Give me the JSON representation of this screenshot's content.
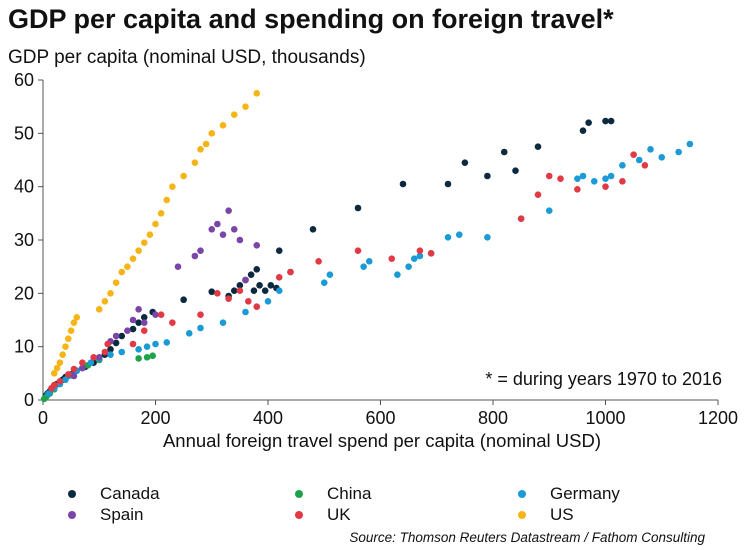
{
  "chart_data": {
    "type": "scatter",
    "title": "GDP per capita and spending on foreign travel*",
    "ylabel": "GDP per capita (nominal USD, thousands)",
    "xlabel": "Annual foreign travel spend per capita (nominal USD)",
    "annotation": "* = during years 1970 to 2016",
    "source": "Source: Thomson Reuters Datastream / Fathom Consulting",
    "xlim": [
      0,
      1200
    ],
    "ylim": [
      0,
      60
    ],
    "xticks": [
      0,
      200,
      400,
      600,
      800,
      1000,
      1200
    ],
    "yticks": [
      0,
      10,
      20,
      30,
      40,
      50,
      60
    ],
    "grid": false,
    "legend_position": "bottom",
    "series": [
      {
        "name": "Canada",
        "color": "#0b2a3f",
        "points": [
          [
            5,
            0.8
          ],
          [
            8,
            1.2
          ],
          [
            12,
            1.6
          ],
          [
            15,
            2
          ],
          [
            20,
            2.4
          ],
          [
            25,
            3
          ],
          [
            30,
            3.3
          ],
          [
            35,
            3.8
          ],
          [
            40,
            4.3
          ],
          [
            50,
            4.8
          ],
          [
            60,
            5.5
          ],
          [
            75,
            6.2
          ],
          [
            90,
            7
          ],
          [
            100,
            7.7
          ],
          [
            110,
            8.5
          ],
          [
            120,
            9.5
          ],
          [
            130,
            10.7
          ],
          [
            140,
            12
          ],
          [
            160,
            13.3
          ],
          [
            170,
            14.5
          ],
          [
            180,
            15.5
          ],
          [
            195,
            16.5
          ],
          [
            250,
            18.8
          ],
          [
            300,
            20.3
          ],
          [
            330,
            19.5
          ],
          [
            340,
            20.5
          ],
          [
            350,
            21.5
          ],
          [
            360,
            22.5
          ],
          [
            370,
            23.5
          ],
          [
            380,
            24.5
          ],
          [
            375,
            20.5
          ],
          [
            385,
            21.5
          ],
          [
            395,
            20.5
          ],
          [
            405,
            21.5
          ],
          [
            415,
            21
          ],
          [
            420,
            28
          ],
          [
            480,
            32
          ],
          [
            560,
            36
          ],
          [
            640,
            40.5
          ],
          [
            720,
            40.5
          ],
          [
            750,
            44.5
          ],
          [
            790,
            42
          ],
          [
            820,
            46.5
          ],
          [
            840,
            43
          ],
          [
            880,
            47.5
          ],
          [
            960,
            50.5
          ],
          [
            970,
            52
          ],
          [
            1000,
            52.3
          ],
          [
            1010,
            52.3
          ]
        ]
      },
      {
        "name": "China",
        "color": "#1fa34a",
        "points": [
          [
            2,
            0.2
          ],
          [
            5,
            0.5
          ],
          [
            8,
            0.9
          ],
          [
            12,
            1.2
          ],
          [
            20,
            2
          ],
          [
            30,
            3
          ],
          [
            45,
            4.5
          ],
          [
            60,
            5.5
          ],
          [
            80,
            6.5
          ],
          [
            100,
            7.5
          ],
          [
            170,
            7.8
          ],
          [
            185,
            8
          ],
          [
            195,
            8.3
          ]
        ]
      },
      {
        "name": "Germany",
        "color": "#1a9bd7",
        "points": [
          [
            10,
            1.2
          ],
          [
            20,
            2.2
          ],
          [
            30,
            3
          ],
          [
            40,
            3.8
          ],
          [
            50,
            4.6
          ],
          [
            60,
            5.5
          ],
          [
            70,
            6
          ],
          [
            85,
            7
          ],
          [
            100,
            7.8
          ],
          [
            120,
            8.5
          ],
          [
            140,
            9
          ],
          [
            170,
            9.5
          ],
          [
            185,
            10
          ],
          [
            200,
            10.5
          ],
          [
            220,
            10.8
          ],
          [
            260,
            12.5
          ],
          [
            280,
            13.5
          ],
          [
            320,
            14.5
          ],
          [
            360,
            16.5
          ],
          [
            380,
            17.5
          ],
          [
            400,
            18.5
          ],
          [
            420,
            20.5
          ],
          [
            440,
            24
          ],
          [
            500,
            22
          ],
          [
            510,
            23.5
          ],
          [
            570,
            25
          ],
          [
            580,
            26
          ],
          [
            630,
            23.5
          ],
          [
            650,
            25
          ],
          [
            660,
            26.5
          ],
          [
            670,
            27
          ],
          [
            690,
            27.5
          ],
          [
            720,
            30.5
          ],
          [
            740,
            31
          ],
          [
            790,
            30.5
          ],
          [
            850,
            34
          ],
          [
            900,
            35.5
          ],
          [
            950,
            41.5
          ],
          [
            960,
            42
          ],
          [
            980,
            41
          ],
          [
            1000,
            41.5
          ],
          [
            1010,
            42
          ],
          [
            1030,
            44
          ],
          [
            1060,
            45
          ],
          [
            1080,
            47
          ],
          [
            1100,
            45.5
          ],
          [
            1130,
            46.5
          ],
          [
            1150,
            48
          ]
        ]
      },
      {
        "name": "Spain",
        "color": "#7a45a8",
        "points": [
          [
            55,
            4.5
          ],
          [
            70,
            6
          ],
          [
            100,
            8
          ],
          [
            120,
            11
          ],
          [
            130,
            12
          ],
          [
            150,
            13
          ],
          [
            160,
            15
          ],
          [
            170,
            17
          ],
          [
            180,
            14.5
          ],
          [
            200,
            16
          ],
          [
            240,
            25
          ],
          [
            270,
            27
          ],
          [
            280,
            28
          ],
          [
            300,
            32
          ],
          [
            310,
            33
          ],
          [
            320,
            31
          ],
          [
            330,
            35.5
          ],
          [
            340,
            32
          ],
          [
            350,
            30
          ],
          [
            360,
            22.5
          ],
          [
            380,
            29
          ]
        ]
      },
      {
        "name": "UK",
        "color": "#e23a44",
        "points": [
          [
            15,
            2.2
          ],
          [
            20,
            2.8
          ],
          [
            30,
            3.5
          ],
          [
            45,
            4.8
          ],
          [
            55,
            5.8
          ],
          [
            70,
            7
          ],
          [
            90,
            8
          ],
          [
            110,
            9
          ],
          [
            115,
            10.5
          ],
          [
            160,
            10.5
          ],
          [
            180,
            13
          ],
          [
            210,
            16
          ],
          [
            230,
            14.5
          ],
          [
            280,
            16
          ],
          [
            310,
            20
          ],
          [
            330,
            19
          ],
          [
            350,
            20.5
          ],
          [
            365,
            18.5
          ],
          [
            380,
            17.5
          ],
          [
            420,
            23
          ],
          [
            440,
            24
          ],
          [
            490,
            26
          ],
          [
            560,
            28
          ],
          [
            620,
            26.5
          ],
          [
            670,
            28
          ],
          [
            690,
            27.5
          ],
          [
            850,
            34
          ],
          [
            880,
            38.5
          ],
          [
            900,
            42
          ],
          [
            920,
            41.5
          ],
          [
            950,
            39.5
          ],
          [
            1000,
            40
          ],
          [
            1030,
            41
          ],
          [
            1050,
            46
          ],
          [
            1070,
            44
          ]
        ]
      },
      {
        "name": "US",
        "color": "#f5b417",
        "points": [
          [
            20,
            5
          ],
          [
            25,
            6
          ],
          [
            30,
            7
          ],
          [
            35,
            8.5
          ],
          [
            40,
            10
          ],
          [
            45,
            11.5
          ],
          [
            50,
            13
          ],
          [
            55,
            14.5
          ],
          [
            60,
            15.5
          ],
          [
            100,
            17
          ],
          [
            110,
            18.5
          ],
          [
            120,
            20
          ],
          [
            130,
            22
          ],
          [
            140,
            24
          ],
          [
            150,
            25
          ],
          [
            160,
            26.5
          ],
          [
            170,
            28
          ],
          [
            180,
            29.5
          ],
          [
            190,
            31
          ],
          [
            200,
            33
          ],
          [
            210,
            35
          ],
          [
            220,
            37.5
          ],
          [
            230,
            40
          ],
          [
            250,
            42
          ],
          [
            270,
            44.5
          ],
          [
            280,
            47
          ],
          [
            290,
            48
          ],
          [
            300,
            50
          ],
          [
            320,
            51.5
          ],
          [
            340,
            53.5
          ],
          [
            360,
            55
          ],
          [
            380,
            57.5
          ]
        ]
      }
    ]
  }
}
